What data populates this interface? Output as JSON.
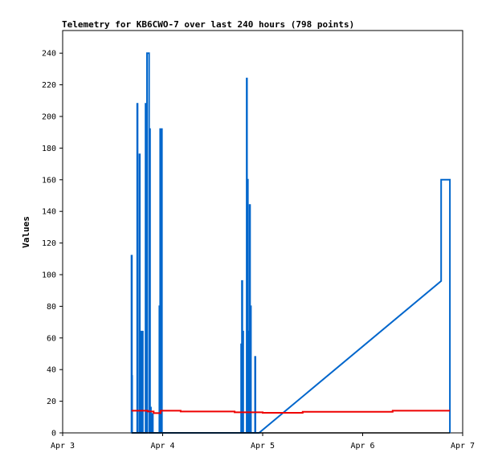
{
  "chart_data": {
    "type": "line",
    "title": "Telemetry for KB6CWO-7 over last 240 hours (798 points)",
    "xlabel": "",
    "ylabel": "Values",
    "x_ticks": [
      "Apr 3",
      "Apr 4",
      "Apr 5",
      "Apr 6",
      "Apr 7"
    ],
    "x_unit": "days since Apr 3 00:00",
    "xlim": [
      0,
      4
    ],
    "ylim": [
      0,
      255
    ],
    "y_ticks": [
      0,
      20,
      40,
      60,
      80,
      100,
      120,
      140,
      160,
      180,
      200,
      220,
      240
    ],
    "grid": false,
    "series": [
      {
        "name": "",
        "color": "#0066cc",
        "x": [
          0.688,
          0.688,
          0.692,
          0.692,
          0.695,
          0.695,
          0.745,
          0.745,
          0.749,
          0.749,
          0.768,
          0.768,
          0.772,
          0.772,
          0.785,
          0.785,
          0.789,
          0.789,
          0.798,
          0.798,
          0.802,
          0.802,
          0.829,
          0.829,
          0.838,
          0.838,
          0.843,
          0.843,
          0.864,
          0.864,
          0.868,
          0.868,
          0.874,
          0.874,
          0.878,
          0.878,
          0.883,
          0.883,
          0.897,
          0.897,
          0.902,
          0.902,
          0.967,
          0.967,
          0.971,
          0.971,
          0.975,
          0.975,
          0.985,
          0.985,
          0.989,
          0.989,
          0.993,
          0.993,
          1.785,
          1.785,
          1.789,
          1.789,
          1.793,
          1.793,
          1.797,
          1.797,
          1.802,
          1.802,
          1.806,
          1.806,
          1.81,
          1.81,
          1.84,
          1.84,
          1.843,
          1.843,
          1.848,
          1.848,
          1.852,
          1.852,
          1.862,
          1.862,
          1.866,
          1.866,
          1.87,
          1.87,
          1.874,
          1.874,
          1.879,
          1.879,
          1.883,
          1.883,
          1.888,
          1.888,
          1.924,
          1.924,
          1.928,
          1.928,
          1.964,
          3.785,
          3.785,
          3.872,
          3.872
        ],
        "y": [
          0,
          112,
          112,
          36,
          36,
          0,
          0,
          208,
          208,
          0,
          0,
          176,
          176,
          0,
          0,
          64,
          64,
          0,
          0,
          64,
          64,
          0,
          0,
          208,
          208,
          0,
          0,
          240,
          240,
          0,
          0,
          192,
          192,
          0,
          0,
          16,
          16,
          0,
          0,
          12,
          12,
          0,
          0,
          80,
          80,
          0,
          0,
          192,
          192,
          0,
          0,
          192,
          192,
          0,
          0,
          56,
          56,
          0,
          0,
          96,
          96,
          0,
          0,
          64,
          64,
          0,
          0,
          0,
          0,
          224,
          224,
          0,
          0,
          160,
          160,
          0,
          0,
          64,
          64,
          0,
          0,
          144,
          144,
          0,
          0,
          80,
          80,
          0,
          0,
          0,
          0,
          48,
          48,
          0,
          0,
          96,
          160,
          160,
          0
        ]
      },
      {
        "name": "",
        "color": "#ee0000",
        "x": [
          0.688,
          0.85,
          0.85,
          0.91,
          0.91,
          0.98,
          0.98,
          1.18,
          1.18,
          1.72,
          1.72,
          2.0,
          2.0,
          2.4,
          2.4,
          3.3,
          3.3,
          3.872
        ],
        "y": [
          14,
          14,
          13.5,
          13.5,
          12.5,
          12.5,
          14,
          14,
          13.5,
          13.5,
          13,
          13,
          12.7,
          12.7,
          13.3,
          13.3,
          14,
          14
        ]
      },
      {
        "name": "",
        "color": "#000000",
        "x": [
          0.688,
          3.872
        ],
        "y": [
          0,
          0
        ]
      }
    ]
  }
}
